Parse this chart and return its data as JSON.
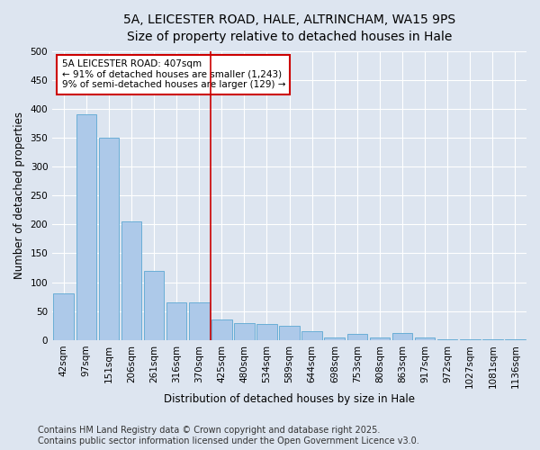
{
  "title_line1": "5A, LEICESTER ROAD, HALE, ALTRINCHAM, WA15 9PS",
  "title_line2": "Size of property relative to detached houses in Hale",
  "xlabel": "Distribution of detached houses by size in Hale",
  "ylabel": "Number of detached properties",
  "bar_labels": [
    "42sqm",
    "97sqm",
    "151sqm",
    "206sqm",
    "261sqm",
    "316sqm",
    "370sqm",
    "425sqm",
    "480sqm",
    "534sqm",
    "589sqm",
    "644sqm",
    "698sqm",
    "753sqm",
    "808sqm",
    "863sqm",
    "917sqm",
    "972sqm",
    "1027sqm",
    "1081sqm",
    "1136sqm"
  ],
  "bar_values": [
    80,
    390,
    350,
    205,
    120,
    65,
    65,
    35,
    30,
    28,
    25,
    15,
    5,
    10,
    5,
    12,
    5,
    2,
    2,
    2,
    2
  ],
  "bar_color": "#adc9e9",
  "bar_edge_color": "#6aaed6",
  "vline_x_index": 7,
  "vline_color": "#cc0000",
  "annotation_text": "5A LEICESTER ROAD: 407sqm\n← 91% of detached houses are smaller (1,243)\n9% of semi-detached houses are larger (129) →",
  "annotation_box_color": "#cc0000",
  "ylim": [
    0,
    500
  ],
  "yticks": [
    0,
    50,
    100,
    150,
    200,
    250,
    300,
    350,
    400,
    450,
    500
  ],
  "footer_line1": "Contains HM Land Registry data © Crown copyright and database right 2025.",
  "footer_line2": "Contains public sector information licensed under the Open Government Licence v3.0.",
  "bg_color": "#dde5f0",
  "plot_bg_color": "#dde5f0",
  "title_fontsize": 10,
  "subtitle_fontsize": 9,
  "label_fontsize": 8.5,
  "tick_fontsize": 7.5,
  "footer_fontsize": 7,
  "annot_fontsize": 7.5
}
